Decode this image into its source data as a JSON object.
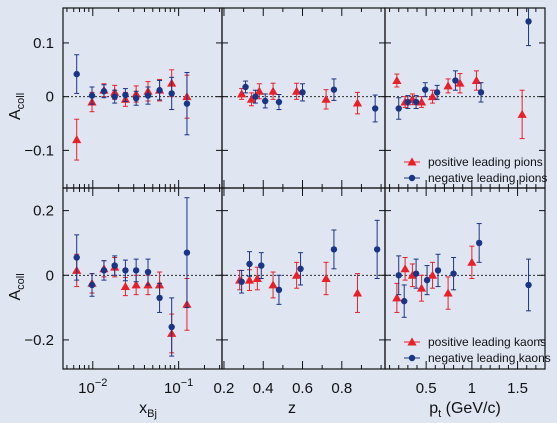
{
  "colors": {
    "background": "#dfe6f2",
    "positive": "#e8202a",
    "negative": "#1a3585",
    "axis": "#111111"
  },
  "chart_data": {
    "type": "scatter",
    "ylabel": "A",
    "ylabel_sub": "coll",
    "x_axes": [
      {
        "label": "x",
        "label_sub": "Bj",
        "scale": "log",
        "xlim": [
          0.0045,
          0.32
        ],
        "ticks": [
          {
            "value": 0.01,
            "base": "10",
            "exp": "−2"
          },
          {
            "value": 0.1,
            "base": "10",
            "exp": "−1"
          }
        ]
      },
      {
        "label": "z",
        "scale": "linear",
        "xlim": [
          0.19,
          1.02
        ],
        "ticks": [
          {
            "value": 0.2,
            "text": "0.2"
          },
          {
            "value": 0.4,
            "text": "0.4"
          },
          {
            "value": 0.6,
            "text": "0.6"
          },
          {
            "value": 0.8,
            "text": "0.8"
          }
        ]
      },
      {
        "label": "p",
        "label_sub": "t",
        "label_suffix": " (GeV/c)",
        "scale": "linear",
        "xlim": [
          0.05,
          1.8
        ],
        "ticks": [
          {
            "value": 0.5,
            "text": "0.5"
          },
          {
            "value": 1.0,
            "text": "1"
          },
          {
            "value": 1.5,
            "text": "1.5"
          }
        ]
      }
    ],
    "rows": [
      {
        "ylim": [
          -0.17,
          0.165
        ],
        "yticks": [
          {
            "value": 0.1,
            "text": "0.1"
          },
          {
            "value": 0,
            "text": "0"
          },
          {
            "value": -0.1,
            "text": "−0.1"
          }
        ],
        "legend": [
          "positive leading pions",
          "negative leading pions"
        ],
        "series": [
          {
            "name": "positive leading pions",
            "kind": "positive",
            "panels": [
              [
                [
                  0.0065,
                  -0.08,
                  0.038
                ],
                [
                  0.0098,
                  -0.01,
                  0.018
                ],
                [
                  0.0135,
                  0.012,
                  0.012
                ],
                [
                  0.018,
                  0.008,
                  0.013
                ],
                [
                  0.024,
                  -0.005,
                  0.013
                ],
                [
                  0.032,
                  0.005,
                  0.015
                ],
                [
                  0.044,
                  0.01,
                  0.018
                ],
                [
                  0.06,
                  0.012,
                  0.02
                ],
                [
                  0.083,
                  0.025,
                  0.025
                ],
                [
                  0.125,
                  0.0,
                  0.04
                ]
              ],
              [
                [
                  0.29,
                  0.005,
                  0.01
                ],
                [
                  0.34,
                  -0.005,
                  0.012
                ],
                [
                  0.38,
                  0.01,
                  0.014
                ],
                [
                  0.45,
                  0.01,
                  0.015
                ],
                [
                  0.57,
                  0.01,
                  0.015
                ],
                [
                  0.72,
                  -0.005,
                  0.018
                ],
                [
                  0.88,
                  -0.012,
                  0.02
                ]
              ],
              [
                [
                  0.18,
                  0.03,
                  0.012
                ],
                [
                  0.27,
                  -0.01,
                  0.01
                ],
                [
                  0.35,
                  -0.005,
                  0.01
                ],
                [
                  0.45,
                  -0.01,
                  0.01
                ],
                [
                  0.57,
                  0.0,
                  0.012
                ],
                [
                  0.74,
                  0.02,
                  0.013
                ],
                [
                  0.87,
                  0.025,
                  0.018
                ],
                [
                  1.05,
                  0.03,
                  0.018
                ],
                [
                  1.55,
                  -0.033,
                  0.045
                ]
              ]
            ]
          },
          {
            "name": "negative leading pions",
            "kind": "negative",
            "panels": [
              [
                [
                  0.0065,
                  0.042,
                  0.036
                ],
                [
                  0.0098,
                  0.002,
                  0.016
                ],
                [
                  0.0135,
                  0.01,
                  0.012
                ],
                [
                  0.018,
                  0.0,
                  0.012
                ],
                [
                  0.024,
                  0.003,
                  0.012
                ],
                [
                  0.032,
                  -0.003,
                  0.013
                ],
                [
                  0.044,
                  0.002,
                  0.016
                ],
                [
                  0.06,
                  0.012,
                  0.018
                ],
                [
                  0.083,
                  0.006,
                  0.03
                ],
                [
                  0.125,
                  -0.013,
                  0.058
                ]
              ],
              [
                [
                  0.31,
                  0.018,
                  0.011
                ],
                [
                  0.36,
                  0.0,
                  0.012
                ],
                [
                  0.41,
                  -0.008,
                  0.013
                ],
                [
                  0.48,
                  -0.01,
                  0.014
                ],
                [
                  0.6,
                  0.008,
                  0.016
                ],
                [
                  0.76,
                  0.013,
                  0.02
                ],
                [
                  0.97,
                  -0.022,
                  0.025
                ]
              ],
              [
                [
                  0.2,
                  -0.022,
                  0.02
                ],
                [
                  0.3,
                  -0.01,
                  0.012
                ],
                [
                  0.39,
                  -0.01,
                  0.012
                ],
                [
                  0.49,
                  0.013,
                  0.013
                ],
                [
                  0.62,
                  0.008,
                  0.013
                ],
                [
                  0.82,
                  0.03,
                  0.018
                ],
                [
                  1.1,
                  0.008,
                  0.018
                ],
                [
                  1.62,
                  0.14,
                  0.045
                ]
              ]
            ]
          }
        ]
      },
      {
        "ylim": [
          -0.29,
          0.27
        ],
        "yticks": [
          {
            "value": 0.2,
            "text": "0.2"
          },
          {
            "value": 0,
            "text": "0"
          },
          {
            "value": -0.2,
            "text": "−0.2"
          }
        ],
        "legend": [
          "positive leading kaons",
          "negative leading kaons"
        ],
        "series": [
          {
            "name": "positive leading kaons",
            "kind": "positive",
            "panels": [
              [
                [
                  0.0065,
                  0.015,
                  0.05
                ],
                [
                  0.0098,
                  -0.025,
                  0.03
                ],
                [
                  0.0135,
                  0.02,
                  0.025
                ],
                [
                  0.018,
                  0.025,
                  0.03
                ],
                [
                  0.024,
                  -0.035,
                  0.028
                ],
                [
                  0.032,
                  -0.03,
                  0.03
                ],
                [
                  0.044,
                  -0.03,
                  0.03
                ],
                [
                  0.06,
                  -0.03,
                  0.04
                ],
                [
                  0.083,
                  -0.18,
                  0.06
                ],
                [
                  0.125,
                  -0.09,
                  0.08
                ]
              ],
              [
                [
                  0.28,
                  -0.015,
                  0.03
                ],
                [
                  0.33,
                  -0.015,
                  0.032
                ],
                [
                  0.37,
                  -0.01,
                  0.035
                ],
                [
                  0.45,
                  -0.03,
                  0.04
                ],
                [
                  0.57,
                  0.0,
                  0.04
                ],
                [
                  0.72,
                  -0.01,
                  0.05
                ],
                [
                  0.88,
                  -0.055,
                  0.06
                ]
              ],
              [
                [
                  0.18,
                  -0.07,
                  0.045
                ],
                [
                  0.27,
                  0.02,
                  0.035
                ],
                [
                  0.35,
                  0.0,
                  0.035
                ],
                [
                  0.45,
                  -0.04,
                  0.04
                ],
                [
                  0.57,
                  0.0,
                  0.04
                ],
                [
                  0.74,
                  -0.055,
                  0.05
                ],
                [
                  1.0,
                  0.04,
                  0.05
                ]
              ]
            ]
          },
          {
            "name": "negative leading kaons",
            "kind": "negative",
            "panels": [
              [
                [
                  0.0065,
                  0.055,
                  0.07
                ],
                [
                  0.0098,
                  -0.03,
                  0.035
                ],
                [
                  0.0135,
                  0.015,
                  0.03
                ],
                [
                  0.018,
                  0.03,
                  0.03
                ],
                [
                  0.024,
                  0.015,
                  0.032
                ],
                [
                  0.032,
                  0.015,
                  0.035
                ],
                [
                  0.044,
                  0.01,
                  0.04
                ],
                [
                  0.06,
                  -0.07,
                  0.045
                ],
                [
                  0.083,
                  -0.16,
                  0.09
                ],
                [
                  0.125,
                  0.07,
                  0.17
                ]
              ],
              [
                [
                  0.29,
                  -0.02,
                  0.035
                ],
                [
                  0.33,
                  0.035,
                  0.038
                ],
                [
                  0.39,
                  0.03,
                  0.04
                ],
                [
                  0.48,
                  -0.045,
                  0.045
                ],
                [
                  0.59,
                  0.02,
                  0.05
                ],
                [
                  0.76,
                  0.08,
                  0.06
                ],
                [
                  0.98,
                  0.08,
                  0.09
                ]
              ],
              [
                [
                  0.2,
                  0.0,
                  0.06
                ],
                [
                  0.26,
                  -0.08,
                  0.05
                ],
                [
                  0.39,
                  0.005,
                  0.045
                ],
                [
                  0.51,
                  -0.015,
                  0.045
                ],
                [
                  0.63,
                  0.015,
                  0.05
                ],
                [
                  0.8,
                  0.005,
                  0.05
                ],
                [
                  1.08,
                  0.1,
                  0.06
                ],
                [
                  1.62,
                  -0.03,
                  0.08
                ]
              ]
            ]
          }
        ]
      }
    ]
  }
}
